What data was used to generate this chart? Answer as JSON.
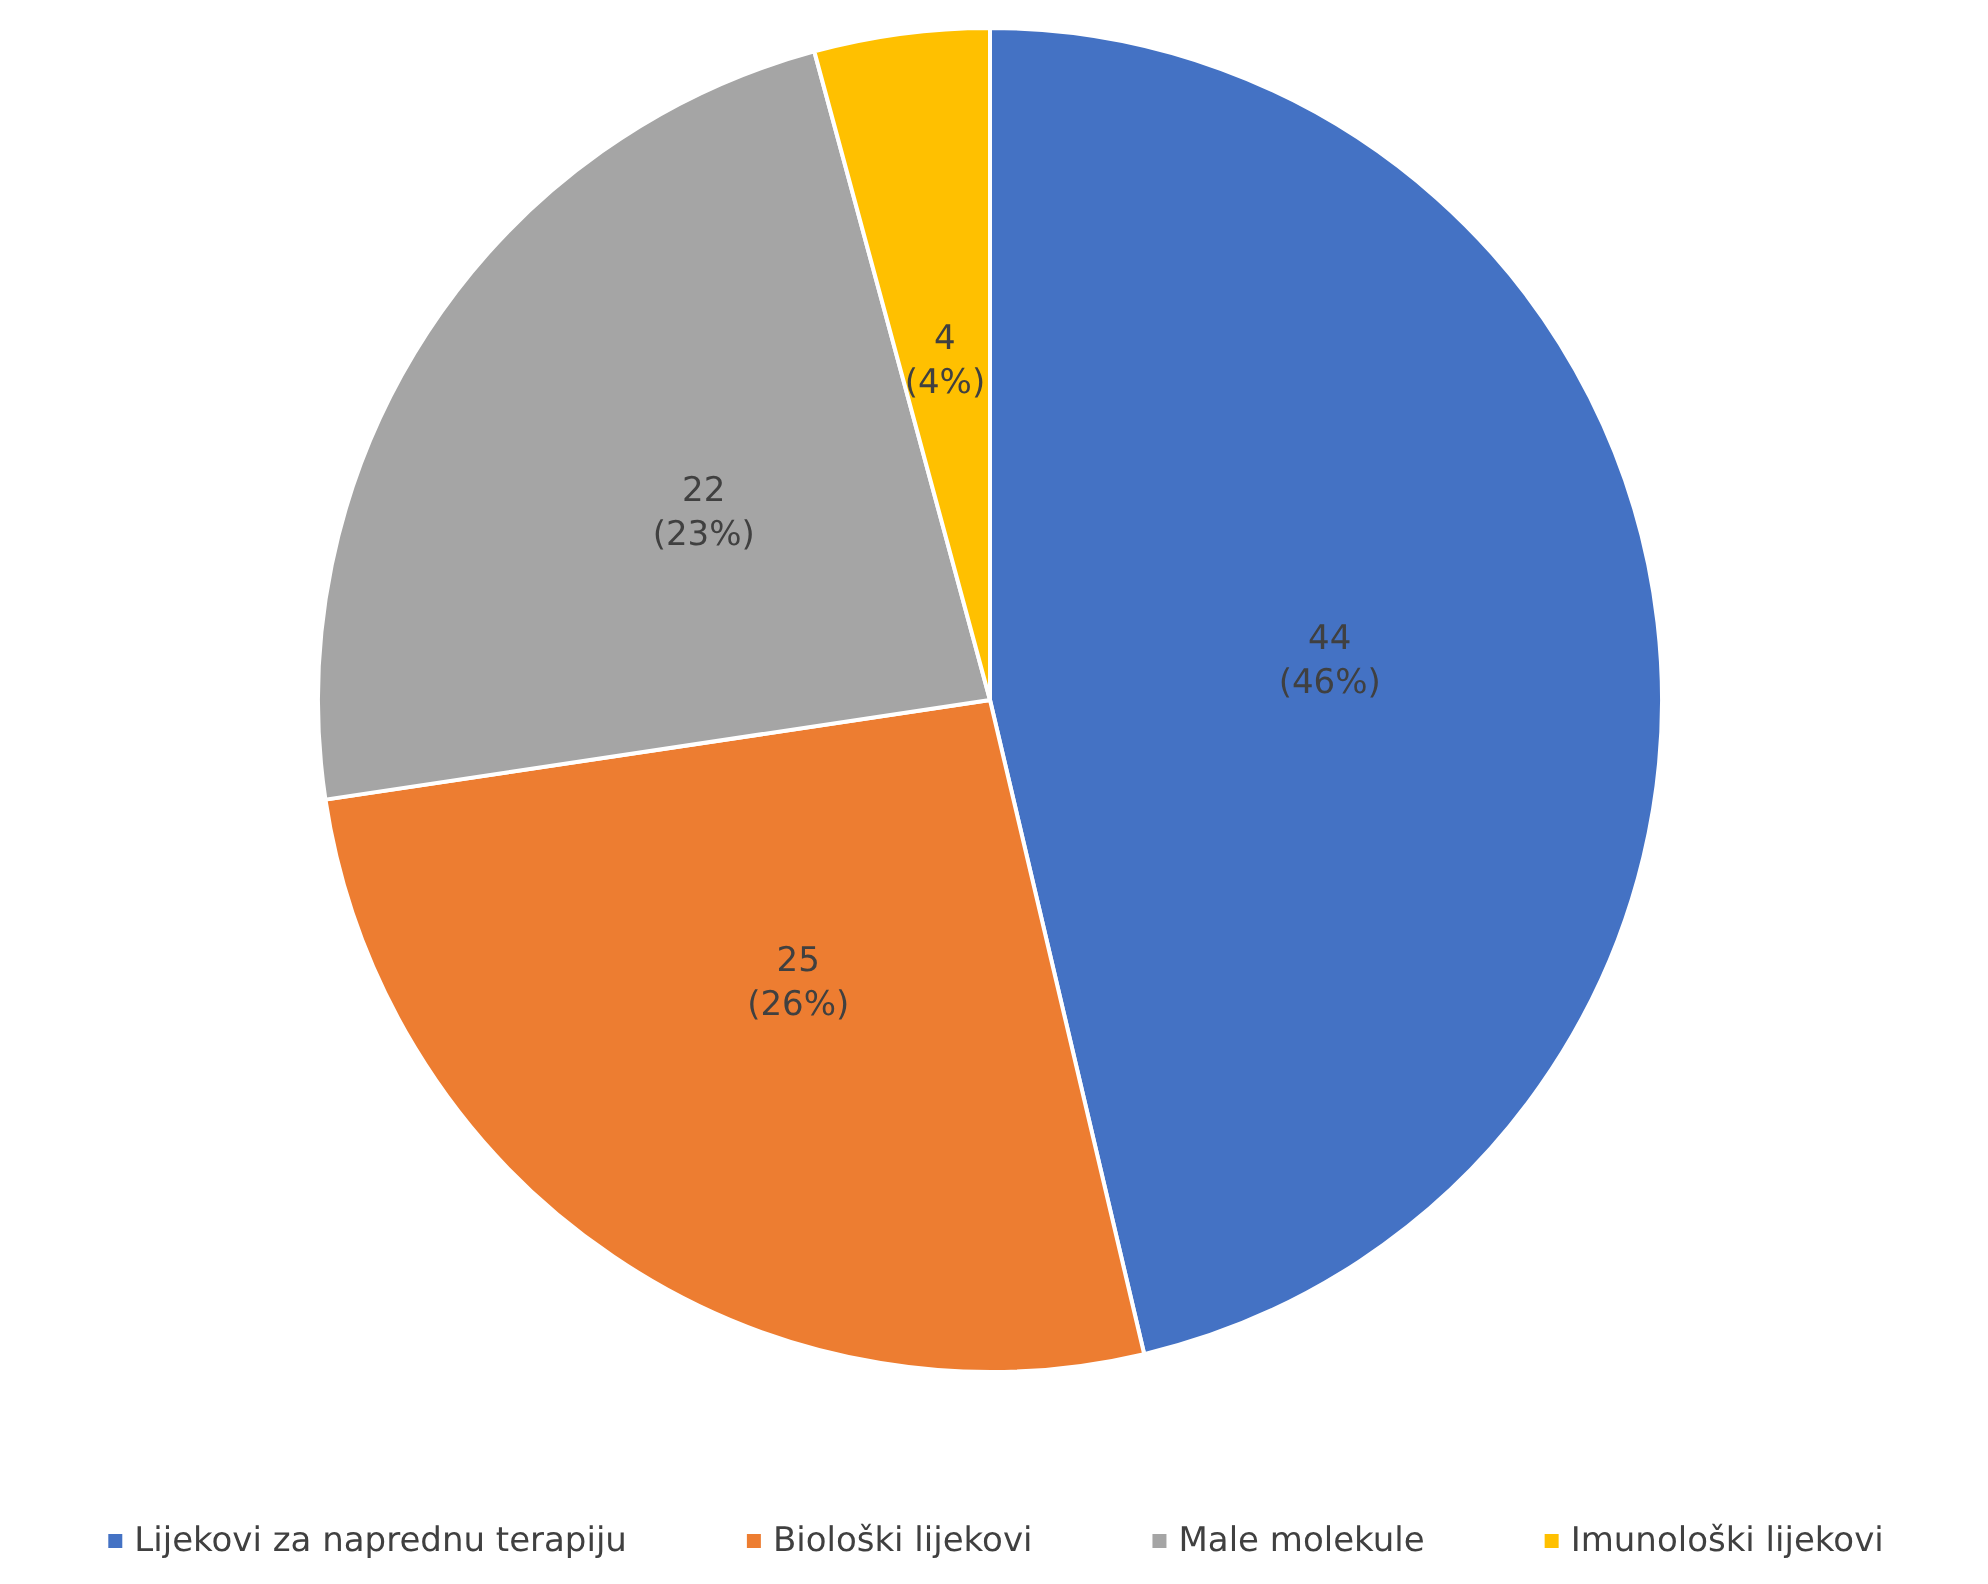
{
  "chart_data": {
    "type": "pie",
    "categories": [
      "Lijekovi za naprednu terapiju",
      "Biološki lijekovi",
      "Male molekule",
      "Imunološki lijekovi"
    ],
    "values": [
      44,
      25,
      22,
      4
    ],
    "colors": [
      "#4472c4",
      "#ed7d31",
      "#a5a5a5",
      "#ffc000"
    ],
    "value_labels": [
      "44\n(46%)",
      "25\n(26%)",
      "22\n(23%)",
      "4\n(4%)"
    ],
    "legend": "bottom"
  }
}
